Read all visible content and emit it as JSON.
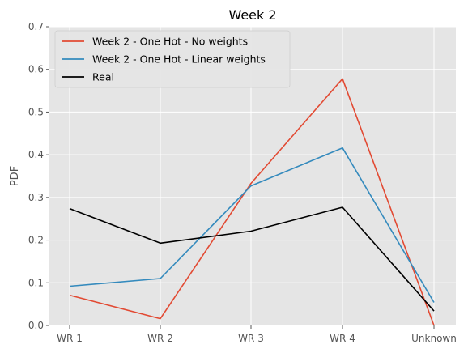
{
  "chart_data": {
    "type": "line",
    "title": "Week 2",
    "xlabel": "",
    "ylabel": "PDF",
    "categories": [
      "WR 1",
      "WR 2",
      "WR 3",
      "WR 4",
      "Unknown"
    ],
    "ylim": [
      0,
      0.7
    ],
    "yticks": [
      "0.0",
      "0.1",
      "0.2",
      "0.3",
      "0.4",
      "0.5",
      "0.6",
      "0.7"
    ],
    "grid": true,
    "legend_position": "top-left",
    "series": [
      {
        "name": "Week 2 - One Hot - No weights",
        "color": "#e24a33",
        "values": [
          0.071,
          0.016,
          0.333,
          0.578,
          0.0
        ]
      },
      {
        "name": "Week 2 - One Hot - Linear weights",
        "color": "#348abd",
        "values": [
          0.092,
          0.11,
          0.327,
          0.416,
          0.054
        ]
      },
      {
        "name": "Real",
        "color": "#000000",
        "values": [
          0.274,
          0.193,
          0.221,
          0.277,
          0.034
        ]
      }
    ]
  }
}
